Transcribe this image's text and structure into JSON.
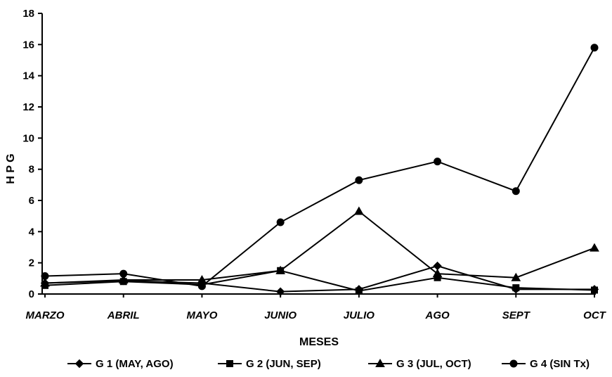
{
  "chart_data": {
    "type": "line",
    "title": "",
    "xlabel": "MESES",
    "ylabel": "H P G",
    "categories": [
      "MARZO",
      "ABRIL",
      "MAYO",
      "JUNIO",
      "JULIO",
      "AGO",
      "SEPT",
      "OCT"
    ],
    "ylim": [
      0,
      18
    ],
    "yticks": [
      0,
      2,
      4,
      6,
      8,
      10,
      12,
      14,
      16,
      18
    ],
    "grid": false,
    "legend_position": "bottom",
    "series": [
      {
        "name": "G 1 (MAY, AGO)",
        "marker": "diamond",
        "values": [
          0.7,
          0.85,
          0.7,
          0.15,
          0.3,
          1.8,
          0.3,
          0.3
        ]
      },
      {
        "name": "G 2 (JUN, SEP)",
        "marker": "square",
        "values": [
          0.55,
          0.8,
          0.6,
          1.5,
          0.2,
          1.05,
          0.4,
          0.25
        ]
      },
      {
        "name": "G 3 (JUL, OCT)",
        "marker": "triangle",
        "values": [
          0.7,
          0.9,
          0.9,
          1.5,
          5.3,
          1.3,
          1.05,
          2.95
        ]
      },
      {
        "name": "G 4 (SIN Tx)",
        "marker": "circle",
        "values": [
          1.15,
          1.3,
          0.5,
          4.6,
          7.3,
          8.5,
          6.6,
          15.8
        ]
      }
    ]
  }
}
